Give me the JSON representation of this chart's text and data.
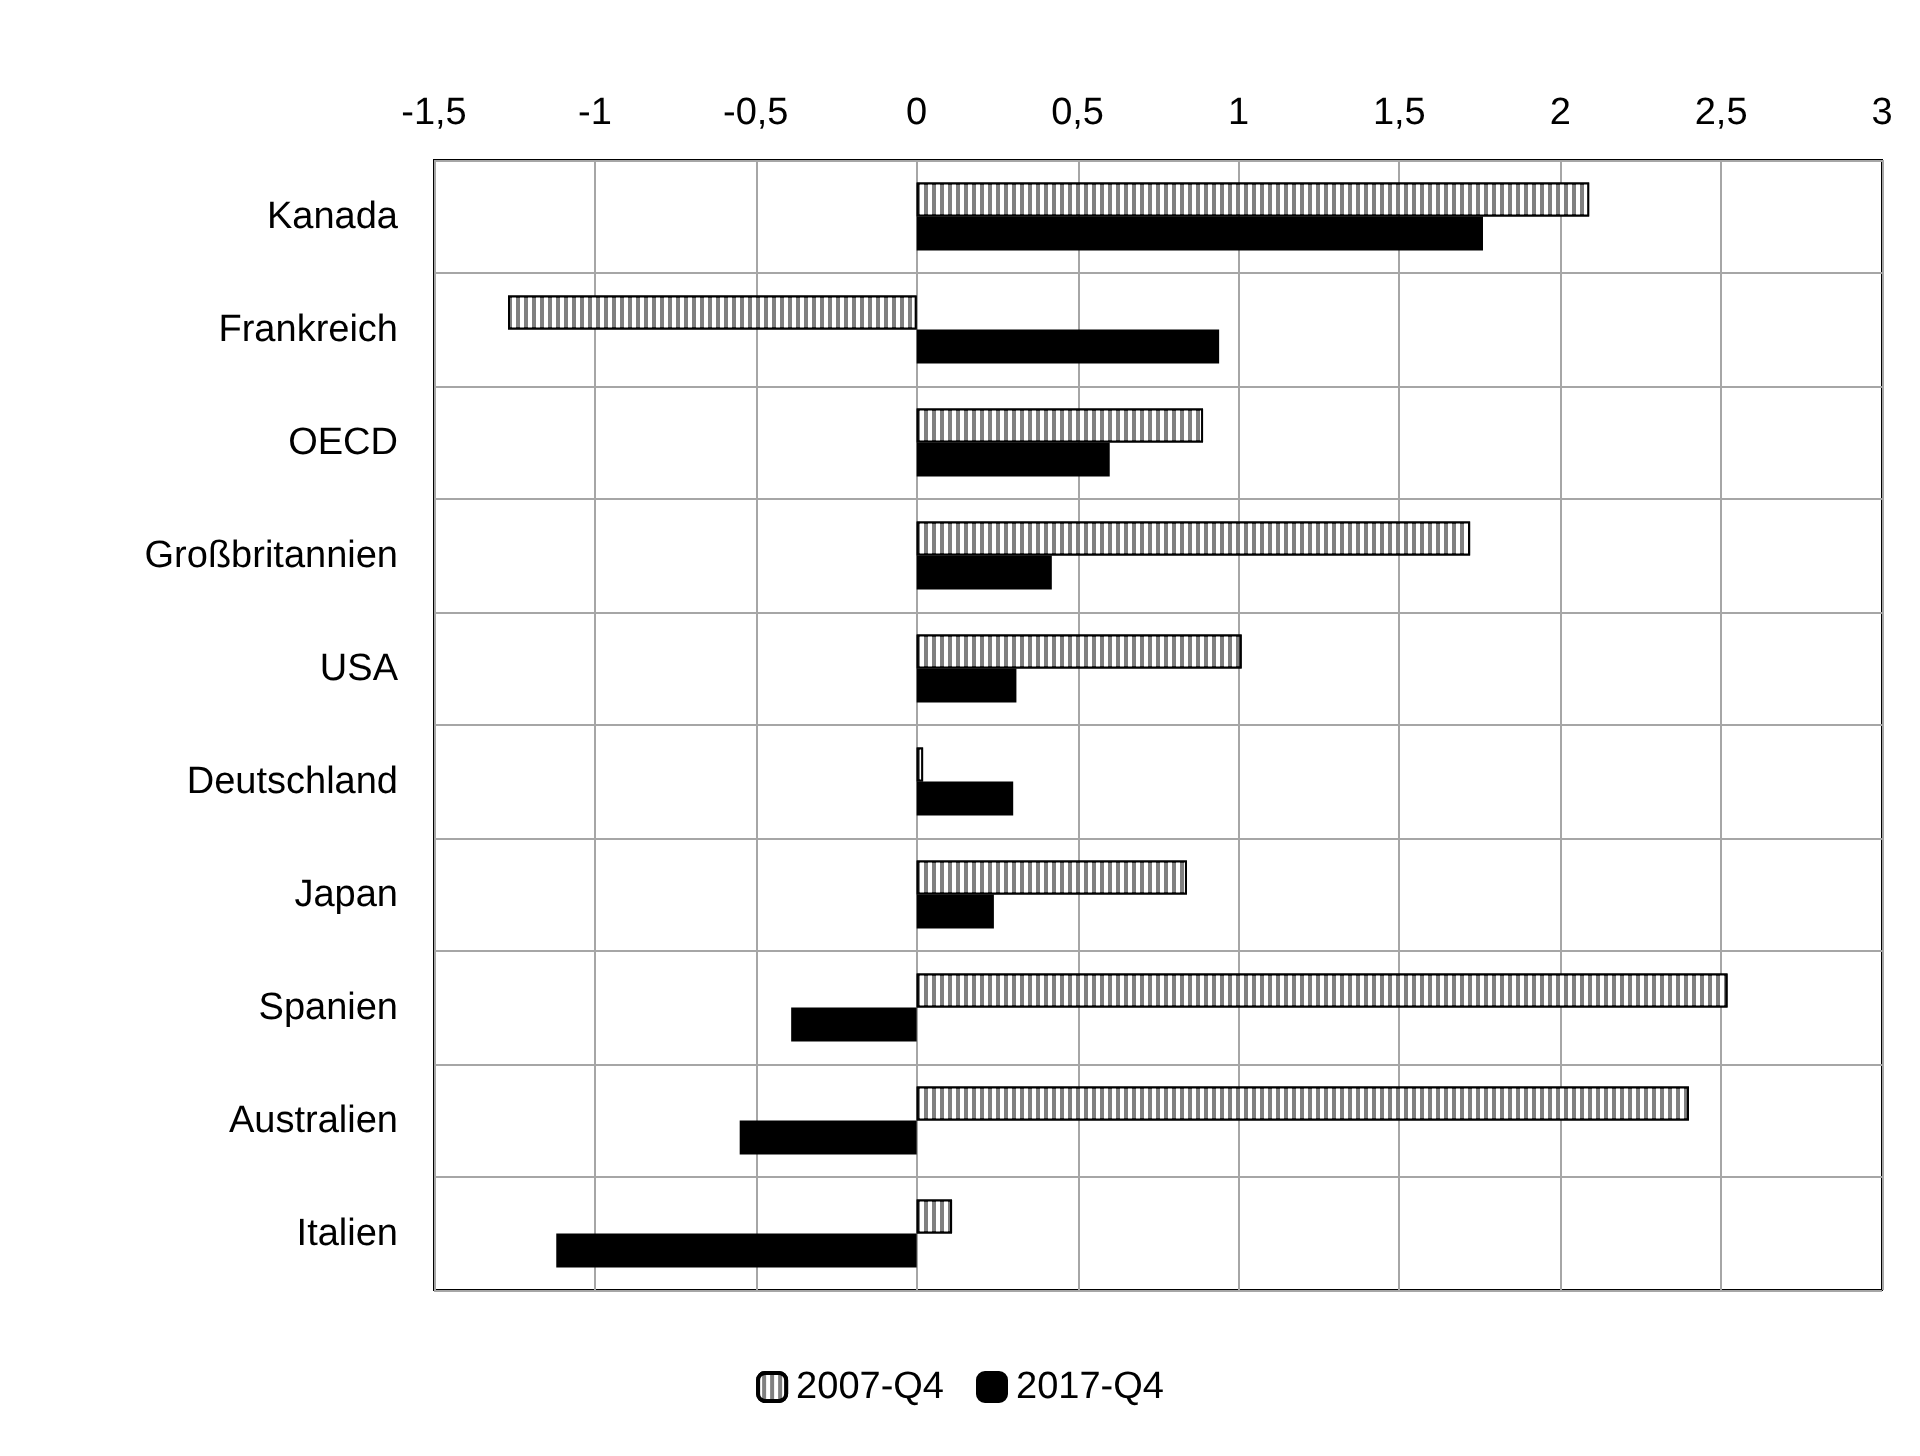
{
  "chart_data": {
    "type": "bar",
    "orientation": "horizontal",
    "categories": [
      "Kanada",
      "Frankreich",
      "OECD",
      "Großbritannien",
      "USA",
      "Deutschland",
      "Japan",
      "Spanien",
      "Australien",
      "Italien"
    ],
    "series": [
      {
        "name": "2007-Q4",
        "color": "#808080",
        "values": [
          2.09,
          -1.27,
          0.89,
          1.72,
          1.01,
          0.02,
          0.84,
          2.52,
          2.4,
          0.11
        ]
      },
      {
        "name": "2017-Q4",
        "color": "#000000",
        "values": [
          1.76,
          0.94,
          0.6,
          0.42,
          0.31,
          0.3,
          0.24,
          -0.39,
          -0.55,
          -1.12
        ]
      }
    ],
    "xlim": [
      -1.5,
      3
    ],
    "xticks": [
      {
        "value": -1.5,
        "label": "-1,5"
      },
      -1,
      {
        "value": -0.5,
        "label": "-0,5"
      },
      0,
      {
        "value": 0.5,
        "label": "0,5"
      },
      1,
      {
        "value": 1.5,
        "label": "1,5"
      },
      2,
      {
        "value": 2.5,
        "label": "2,5"
      },
      3
    ],
    "grid": true,
    "legend": "bottom"
  }
}
